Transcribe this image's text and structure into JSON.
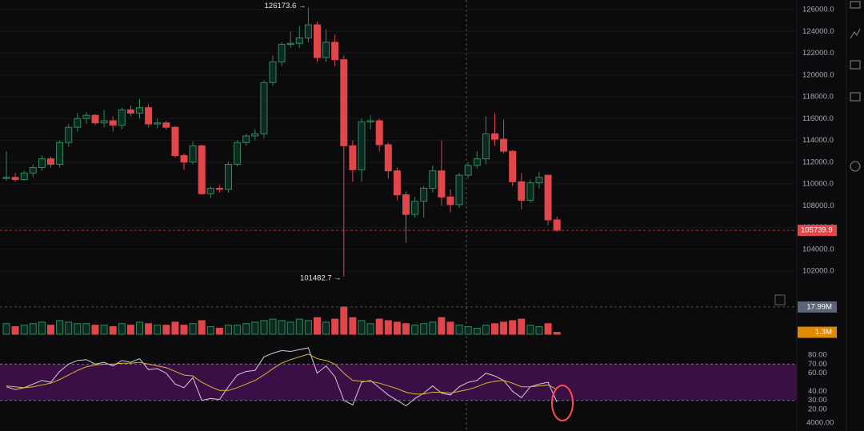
{
  "chart_data": [
    {
      "type": "candlestick",
      "up_color": "#2e8b57",
      "down_color": "#e0464a",
      "open": [
        110.5,
        110.6,
        110.4,
        111.0,
        111.5,
        112.3,
        111.8,
        113.8,
        115.2,
        116.0,
        116.3,
        115.6,
        115.8,
        115.4,
        116.8,
        116.5,
        117.0,
        115.5,
        115.6,
        115.2,
        112.6,
        112.0,
        113.5,
        109.1,
        109.6,
        109.5,
        111.8,
        113.8,
        114.4,
        114.6,
        119.3,
        121.2,
        122.8,
        122.9,
        123.4,
        124.6,
        121.6,
        123.0,
        121.4,
        113.5,
        111.3,
        115.7,
        115.8,
        113.6,
        111.2,
        109.0,
        107.2,
        108.4,
        109.6,
        111.2,
        108.8,
        108.1,
        110.8,
        111.7,
        112.3,
        114.6,
        114.1,
        113.0,
        110.2,
        108.5,
        110.1,
        110.8,
        106.7
      ],
      "high": [
        113.0,
        111.0,
        111.2,
        111.8,
        112.6,
        112.5,
        114.0,
        115.5,
        116.5,
        116.6,
        116.4,
        116.8,
        116.2,
        117.0,
        117.2,
        117.8,
        117.3,
        116.0,
        115.8,
        115.3,
        112.8,
        113.9,
        113.6,
        109.8,
        109.9,
        112.0,
        114.0,
        114.6,
        115.0,
        119.5,
        121.8,
        123.0,
        124.0,
        124.5,
        126.1736,
        124.9,
        124.2,
        123.7,
        121.8,
        114.0,
        116.0,
        116.3,
        116.0,
        113.8,
        111.5,
        109.3,
        108.8,
        109.8,
        111.7,
        114.0,
        109.5,
        111.0,
        112.0,
        113.0,
        116.2,
        116.5,
        115.9,
        113.1,
        111.0,
        110.4,
        111.1,
        110.8,
        107.0
      ],
      "low": [
        110.3,
        110.2,
        110.3,
        110.6,
        111.2,
        111.5,
        111.5,
        113.4,
        114.8,
        115.5,
        115.4,
        115.2,
        114.8,
        115.0,
        116.2,
        116.0,
        115.2,
        115.1,
        115.0,
        112.4,
        111.3,
        111.8,
        109.0,
        108.7,
        109.2,
        109.2,
        111.6,
        113.5,
        114.0,
        114.2,
        119.0,
        120.8,
        122.5,
        122.5,
        123.0,
        121.2,
        121.2,
        120.8,
        101.4827,
        110.2,
        110.2,
        115.0,
        113.0,
        110.5,
        108.5,
        104.6,
        106.9,
        106.9,
        109.2,
        108.0,
        107.4,
        107.8,
        110.5,
        111.4,
        111.8,
        113.5,
        112.8,
        109.8,
        107.7,
        108.3,
        109.6,
        106.2,
        105.6
      ],
      "close": [
        110.6,
        110.4,
        111.0,
        111.5,
        112.3,
        111.8,
        113.8,
        115.2,
        116.0,
        116.3,
        115.6,
        115.8,
        115.4,
        116.8,
        116.5,
        117.0,
        115.5,
        115.6,
        115.2,
        112.6,
        112.0,
        113.5,
        109.1,
        109.6,
        109.5,
        111.8,
        113.8,
        114.4,
        114.6,
        119.3,
        121.2,
        122.8,
        122.9,
        123.4,
        124.6,
        121.6,
        123.0,
        121.4,
        113.5,
        111.3,
        115.7,
        115.8,
        113.6,
        111.2,
        109.0,
        107.2,
        108.4,
        109.6,
        111.2,
        108.8,
        108.1,
        110.8,
        111.7,
        112.3,
        114.6,
        114.1,
        113.0,
        110.2,
        108.5,
        110.1,
        110.6,
        106.7,
        105.7399
      ],
      "ylim": [
        99.725,
        126.88
      ],
      "yticks": [
        {
          "value": 126,
          "label": "126000.0"
        },
        {
          "value": 124,
          "label": "124000.0"
        },
        {
          "value": 122,
          "label": "122000.0"
        },
        {
          "value": 120,
          "label": "120000.0"
        },
        {
          "value": 118,
          "label": "118000.0"
        },
        {
          "value": 116,
          "label": "116000.0"
        },
        {
          "value": 114,
          "label": "114000.0"
        },
        {
          "value": 112,
          "label": "112000.0"
        },
        {
          "value": 110,
          "label": "110000.0"
        },
        {
          "value": 108,
          "label": "108000.0"
        },
        {
          "value": 106,
          "label": "106000.0"
        },
        {
          "value": 104,
          "label": "104000.0"
        },
        {
          "value": 102,
          "label": "102000.0"
        }
      ],
      "last_price": {
        "value": 105.7399,
        "label": "105739.9"
      },
      "high_label": {
        "value": 126.1736,
        "label": "126173.6 →"
      },
      "low_label": {
        "value": 101.4827,
        "label": "101482.7 →"
      },
      "grid": true
    },
    {
      "type": "bar",
      "values": [
        7,
        5,
        6,
        7,
        8,
        6,
        9,
        8,
        7,
        7,
        6,
        6,
        5,
        7,
        6,
        8,
        7,
        6,
        6,
        8,
        6,
        7,
        9,
        5,
        4,
        6,
        6,
        7,
        8,
        9,
        10,
        9,
        8,
        10,
        9,
        11,
        8,
        10,
        18,
        11,
        9,
        7,
        10,
        9,
        8,
        7,
        6,
        7,
        8,
        11,
        8,
        6,
        5,
        4,
        6,
        7,
        8,
        9,
        10,
        6,
        5,
        7,
        1.3
      ],
      "ylim": [
        0,
        19
      ],
      "badges": [
        {
          "value": 17.99,
          "label": "17.99M"
        },
        {
          "value": 1.3,
          "label": "1.3M"
        }
      ]
    },
    {
      "type": "line",
      "series": [
        {
          "color": "#cfcfdc",
          "values": [
            45,
            42,
            44,
            48,
            52,
            50,
            62,
            70,
            74,
            75,
            70,
            72,
            68,
            74,
            72,
            76,
            64,
            65,
            60,
            48,
            44,
            55,
            30,
            32,
            31,
            45,
            58,
            62,
            63,
            78,
            82,
            85,
            84,
            86,
            88,
            60,
            68,
            56,
            30,
            25,
            50,
            52,
            44,
            36,
            30,
            24,
            32,
            38,
            46,
            38,
            36,
            45,
            50,
            52,
            60,
            57,
            52,
            40,
            33,
            45,
            48,
            50,
            28
          ]
        },
        {
          "color": "#d9b830",
          "values": [
            46,
            45,
            44,
            45,
            47,
            49,
            53,
            58,
            63,
            67,
            69,
            70,
            70,
            71,
            71,
            72,
            70,
            68,
            66,
            62,
            58,
            57,
            50,
            45,
            41,
            41,
            44,
            48,
            52,
            58,
            65,
            71,
            75,
            78,
            81,
            76,
            74,
            70,
            60,
            52,
            51,
            51,
            49,
            46,
            43,
            39,
            37,
            37,
            39,
            39,
            38,
            40,
            42,
            45,
            49,
            51,
            52,
            49,
            45,
            45,
            46,
            47,
            42
          ]
        }
      ],
      "band": [
        30,
        70
      ],
      "band_color": "#3a0f45",
      "ylim": [
        -3.8,
        92.4
      ],
      "yticks": [
        {
          "value": 80,
          "label": "80.00"
        },
        {
          "value": 70,
          "label": "70.00"
        },
        {
          "value": 60,
          "label": "60.00"
        },
        {
          "value": 40,
          "label": "40.00"
        },
        {
          "value": 30,
          "label": "30.00"
        },
        {
          "value": 20,
          "label": "20.00"
        }
      ],
      "footer_label": "4000.00"
    }
  ]
}
